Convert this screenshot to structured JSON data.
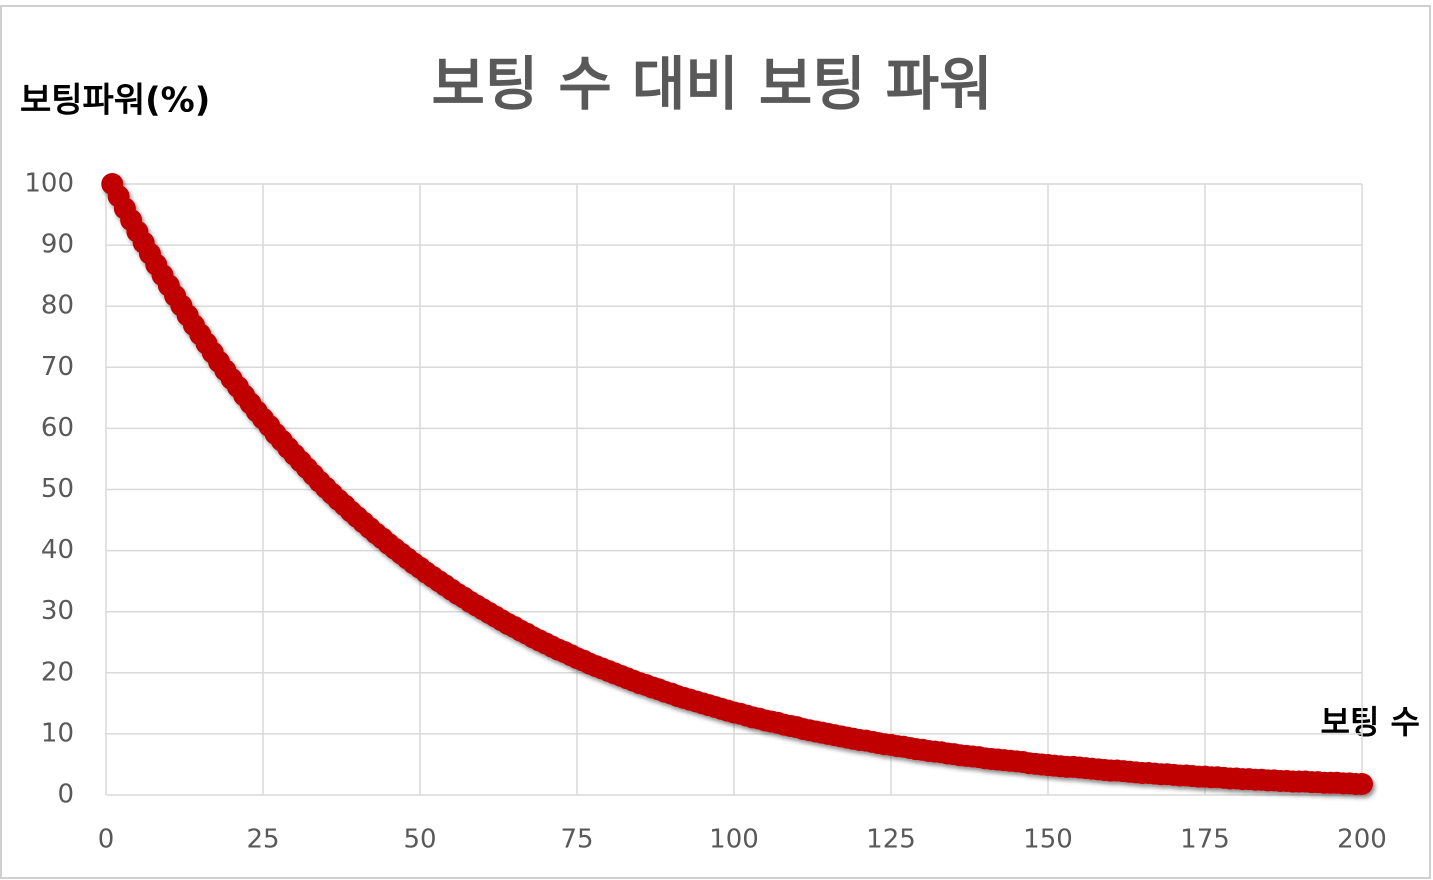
{
  "chart_data": {
    "type": "scatter",
    "title": "보팅 수 대비 보팅 파워",
    "y_label": "보팅파워(%)",
    "x_label": "보팅 수",
    "color": "#c00000",
    "grid": true,
    "xlim": [
      0,
      200
    ],
    "xticks": [
      0,
      25,
      50,
      75,
      100,
      125,
      150,
      175,
      200
    ],
    "ylim": [
      0,
      100
    ],
    "yticks": [
      0,
      10,
      20,
      30,
      40,
      50,
      60,
      70,
      80,
      90,
      100
    ],
    "x": [
      1,
      2,
      3,
      4,
      5,
      6,
      7,
      8,
      9,
      10,
      11,
      12,
      13,
      14,
      15,
      16,
      17,
      18,
      19,
      20,
      21,
      22,
      23,
      24,
      25,
      26,
      27,
      28,
      29,
      30,
      31,
      32,
      33,
      34,
      35,
      36,
      37,
      38,
      39,
      40,
      41,
      42,
      43,
      44,
      45,
      46,
      47,
      48,
      49,
      50,
      51,
      52,
      53,
      54,
      55,
      56,
      57,
      58,
      59,
      60,
      61,
      62,
      63,
      64,
      65,
      66,
      67,
      68,
      69,
      70,
      71,
      72,
      73,
      74,
      75,
      76,
      77,
      78,
      79,
      80,
      81,
      82,
      83,
      84,
      85,
      86,
      87,
      88,
      89,
      90,
      91,
      92,
      93,
      94,
      95,
      96,
      97,
      98,
      99,
      100,
      101,
      102,
      103,
      104,
      105,
      106,
      107,
      108,
      109,
      110,
      111,
      112,
      113,
      114,
      115,
      116,
      117,
      118,
      119,
      120,
      121,
      122,
      123,
      124,
      125,
      126,
      127,
      128,
      129,
      130,
      131,
      132,
      133,
      134,
      135,
      136,
      137,
      138,
      139,
      140,
      141,
      142,
      143,
      144,
      145,
      146,
      147,
      148,
      149,
      150,
      151,
      152,
      153,
      154,
      155,
      156,
      157,
      158,
      159,
      160,
      161,
      162,
      163,
      164,
      165,
      166,
      167,
      168,
      169,
      170,
      171,
      172,
      173,
      174,
      175,
      176,
      177,
      178,
      179,
      180,
      181,
      182,
      183,
      184,
      185,
      186,
      187,
      188,
      189,
      190,
      191,
      192,
      193,
      194,
      195,
      196,
      197,
      198,
      199,
      200
    ],
    "values": [
      100,
      98,
      96,
      94.1,
      92.2,
      90.4,
      88.6,
      86.8,
      85.1,
      83.4,
      81.7,
      80.1,
      78.5,
      76.9,
      75.4,
      73.9,
      72.4,
      70.9,
      69.5,
      68.1,
      66.8,
      65.4,
      64.1,
      62.8,
      61.6,
      60.4,
      59.1,
      58,
      56.8,
      55.7,
      54.6,
      53.5,
      52.4,
      51.3,
      50.3,
      49.3,
      48.3,
      47.4,
      46.4,
      45.5,
      44.6,
      43.7,
      42.8,
      42,
      41.1,
      40.3,
      39.5,
      38.7,
      37.9,
      37.2,
      36.4,
      35.7,
      35,
      34.3,
      33.6,
      32.9,
      32.3,
      31.6,
      31,
      30.4,
      29.8,
      29.2,
      28.6,
      28,
      27.5,
      26.9,
      26.4,
      25.8,
      25.3,
      24.8,
      24.3,
      23.8,
      23.4,
      22.9,
      22.4,
      22,
      21.5,
      21.1,
      20.7,
      20.3,
      19.9,
      19.5,
      19.1,
      18.7,
      18.3,
      18,
      17.6,
      17.3,
      16.9,
      16.6,
      16.2,
      15.9,
      15.6,
      15.3,
      15,
      14.7,
      14.4,
      14.1,
      13.8,
      13.5,
      13.3,
      13,
      12.7,
      12.5,
      12.2,
      12,
      11.8,
      11.5,
      11.3,
      11.1,
      10.8,
      10.6,
      10.4,
      10.2,
      10,
      9.8,
      9.6,
      9.4,
      9.2,
      9,
      8.9,
      8.7,
      8.5,
      8.3,
      8.2,
      8,
      7.9,
      7.7,
      7.5,
      7.4,
      7.2,
      7.1,
      7,
      6.8,
      6.7,
      6.5,
      6.4,
      6.3,
      6.2,
      6,
      5.9,
      5.8,
      5.7,
      5.6,
      5.5,
      5.4,
      5.2,
      5.1,
      5,
      4.9,
      4.8,
      4.7,
      4.6,
      4.6,
      4.5,
      4.4,
      4.3,
      4.2,
      4.1,
      4,
      4,
      3.9,
      3.8,
      3.7,
      3.6,
      3.6,
      3.5,
      3.4,
      3.4,
      3.3,
      3.2,
      3.2,
      3.1,
      3,
      3,
      2.9,
      2.9,
      2.8,
      2.7,
      2.7,
      2.6,
      2.6,
      2.5,
      2.5,
      2.4,
      2.4,
      2.3,
      2.3,
      2.2,
      2.2,
      2.2,
      2.1,
      2.1,
      2,
      2,
      2,
      1.9,
      1.9,
      1.8,
      1.8
    ]
  }
}
